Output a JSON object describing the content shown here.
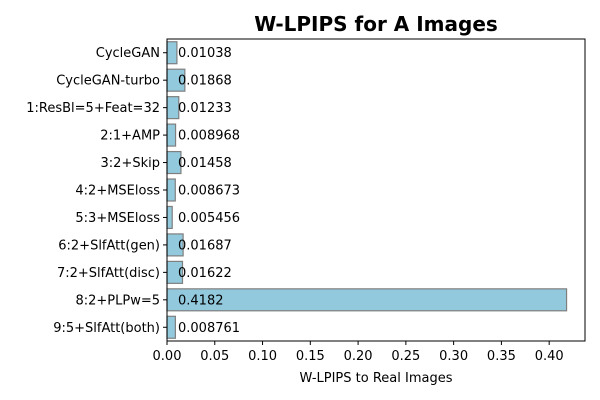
{
  "chart_data": {
    "type": "bar",
    "orientation": "horizontal",
    "title": "W-LPIPS for A Images",
    "xlabel": "W-LPIPS to Real Images",
    "ylabel": "",
    "xlim": [
      0,
      0.4375
    ],
    "xticks": [
      0.0,
      0.05,
      0.1,
      0.15,
      0.2,
      0.25,
      0.3,
      0.35,
      0.4
    ],
    "xtick_labels": [
      "0.00",
      "0.05",
      "0.10",
      "0.15",
      "0.20",
      "0.25",
      "0.30",
      "0.35",
      "0.40"
    ],
    "grid": false,
    "bar_color": "#92c9dd",
    "bar_edge_color": "#7f7f7f",
    "categories": [
      "CycleGAN",
      "CycleGAN-turbo",
      "1:ResBl=5+Feat=32",
      "2:1+AMP",
      "3:2+Skip",
      "4:2+MSEloss",
      "5:3+MSEloss",
      "6:2+SlfAtt(gen)",
      "7:2+SlfAtt(disc)",
      "8:2+PLPw=5",
      "9:5+SlfAtt(both)"
    ],
    "values": [
      0.01038,
      0.01868,
      0.01233,
      0.008968,
      0.01458,
      0.008673,
      0.005456,
      0.01687,
      0.01622,
      0.4182,
      0.008761
    ],
    "value_labels": [
      "0.01038",
      "0.01868",
      "0.01233",
      "0.008968",
      "0.01458",
      "0.008673",
      "0.005456",
      "0.01687",
      "0.01622",
      "0.4182",
      "0.008761"
    ]
  }
}
